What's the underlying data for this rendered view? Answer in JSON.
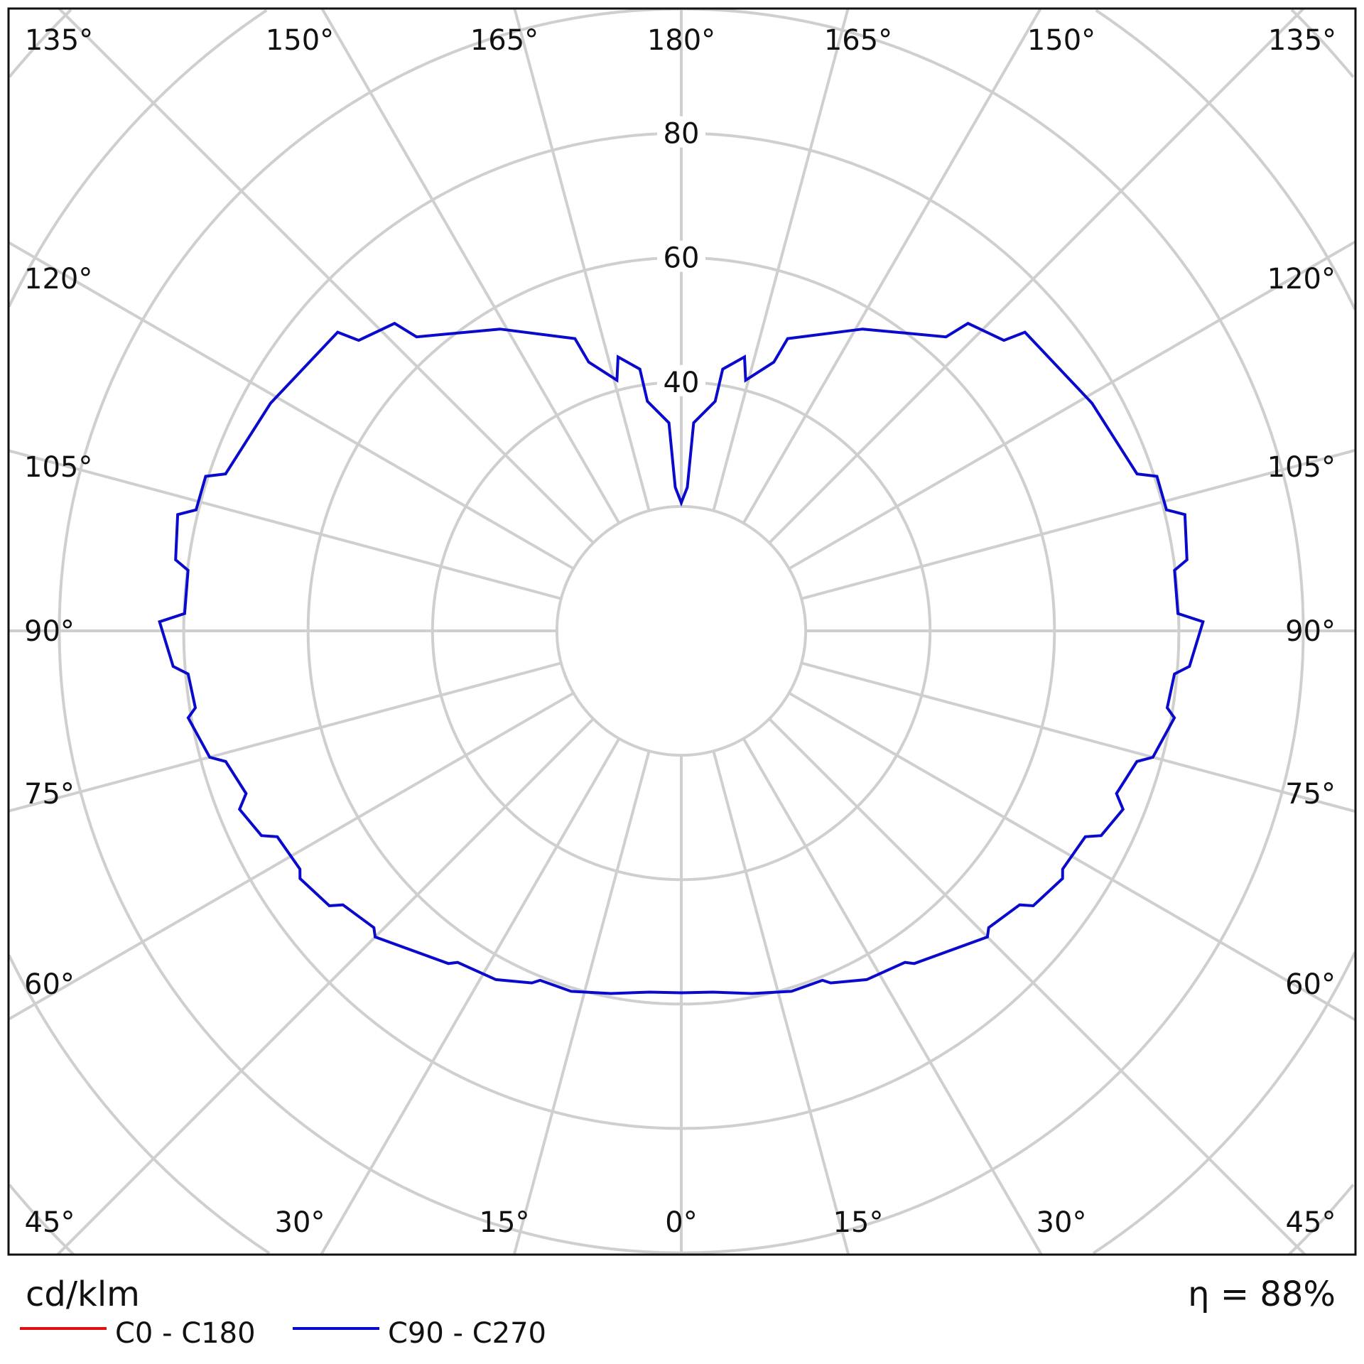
{
  "chart_data": {
    "type": "polar",
    "unit_label": "cd/klm",
    "efficiency_label": "η = 88%",
    "radial_ticks": [
      20,
      40,
      60,
      80,
      100,
      120,
      140,
      160
    ],
    "radial_tick_labels": [
      "40",
      "60",
      "80"
    ],
    "angle_labels_top": [
      "135°",
      "150°",
      "165°",
      "180°",
      "165°",
      "150°",
      "135°"
    ],
    "angle_labels_bottom": [
      "45°",
      "30°",
      "15°",
      "0°",
      "15°",
      "30°",
      "45°"
    ],
    "angle_labels_left": [
      "120°",
      "105°",
      "90°",
      "75°",
      "60°"
    ],
    "angle_labels_right": [
      "120°",
      "105°",
      "90°",
      "75°",
      "60°"
    ],
    "grid": true,
    "legend_placement": "bottom-left",
    "series": [
      {
        "name": "C0 - C180",
        "color": "#e01010",
        "points": []
      },
      {
        "name": "C90 - C270",
        "color": "#0a0acc",
        "symmetric": true,
        "points": [
          [
            0,
            58.2
          ],
          [
            5,
            58.3
          ],
          [
            11,
            59.4
          ],
          [
            17,
            60.6
          ],
          [
            22,
            60.6
          ],
          [
            23,
            61.5
          ],
          [
            28,
            63.5
          ],
          [
            34,
            64.3
          ],
          [
            35,
            65.3
          ],
          [
            45,
            69.6
          ],
          [
            46,
            68.7
          ],
          [
            51,
            70.0
          ],
          [
            52,
            71.8
          ],
          [
            57,
            73.1
          ],
          [
            58,
            72.3
          ],
          [
            63,
            72.9
          ],
          [
            64,
            75.1
          ],
          [
            68,
            76.6
          ],
          [
            69.5,
            74.7
          ],
          [
            74,
            76.2
          ],
          [
            75,
            78.5
          ],
          [
            80,
            80.5
          ],
          [
            81,
            79.1
          ],
          [
            85,
            79.6
          ],
          [
            86,
            81.9
          ],
          [
            91,
            83.9
          ],
          [
            92,
            79.9
          ],
          [
            97,
            79.9
          ],
          [
            98,
            82.1
          ],
          [
            103,
            83.1
          ],
          [
            104,
            80.4
          ],
          [
            108,
            80.4
          ],
          [
            109,
            77.5
          ],
          [
            119,
            75.5
          ],
          [
            131,
            73.2
          ],
          [
            132,
            69.8
          ],
          [
            137,
            67.6
          ],
          [
            138,
            63.6
          ],
          [
            149,
            56.6
          ],
          [
            160,
            50.0
          ],
          [
            161,
            45.7
          ],
          [
            165.6,
            41.6
          ],
          [
            167,
            45.2
          ],
          [
            171,
            42.6
          ],
          [
            171.6,
            37.3
          ],
          [
            176.6,
            33.5
          ],
          [
            177.6,
            23.1
          ],
          [
            180,
            20.6
          ]
        ]
      }
    ]
  }
}
